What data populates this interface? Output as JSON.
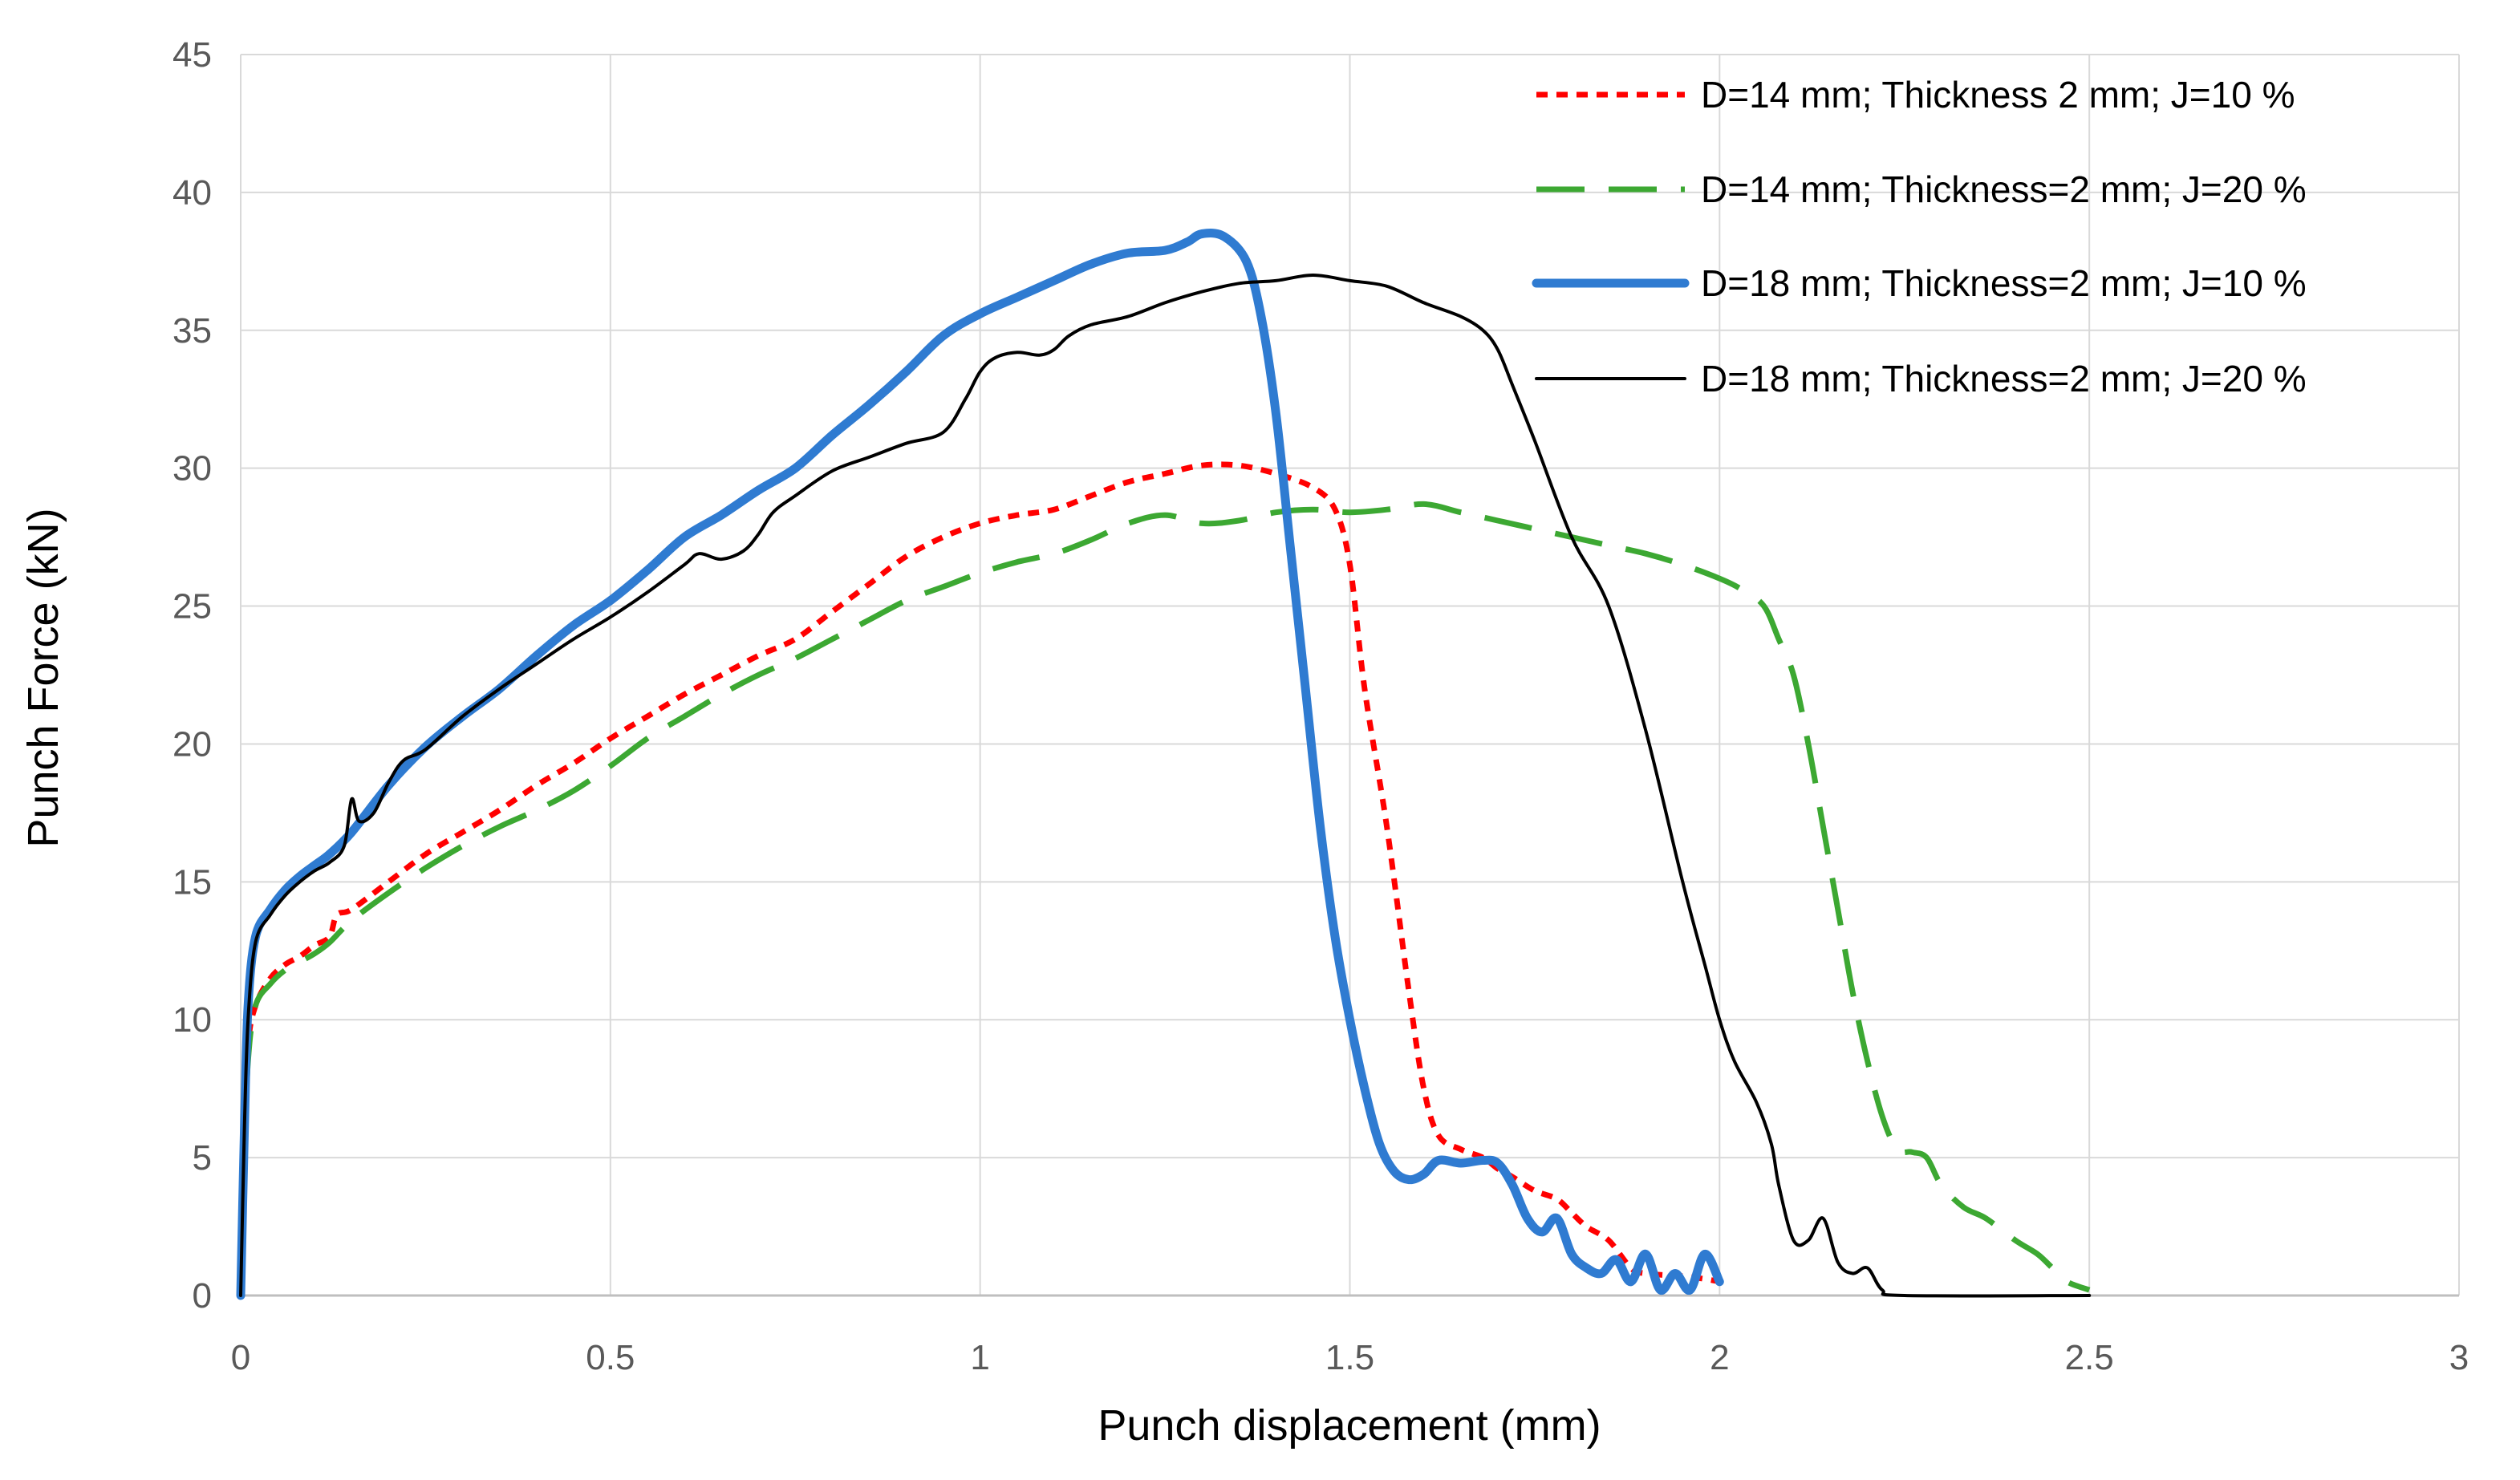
{
  "chart_data": {
    "type": "line",
    "title": "",
    "xlabel": "Punch displacement (mm)",
    "ylabel": "Punch Force (kN)",
    "xlim": [
      0,
      3
    ],
    "ylim": [
      0,
      45
    ],
    "xticks": [
      0,
      0.5,
      1,
      1.5,
      2,
      2.5,
      3
    ],
    "xtick_labels": [
      "0",
      "0.5",
      "1",
      "1.5",
      "2",
      "2.5",
      "3"
    ],
    "yticks": [
      0,
      5,
      10,
      15,
      20,
      25,
      30,
      35,
      40,
      45
    ],
    "ytick_labels": [
      "0",
      "5",
      "10",
      "15",
      "20",
      "25",
      "30",
      "35",
      "40",
      "45"
    ],
    "grid": true,
    "legend_position": "top-right",
    "series": [
      {
        "name": "D=14 mm; Thickness 2 mm; J=10 %",
        "color": "#ff0000",
        "style": "dotted",
        "x": [
          0,
          0.005,
          0.01,
          0.02,
          0.04,
          0.06,
          0.08,
          0.1,
          0.12,
          0.13,
          0.15,
          0.2,
          0.25,
          0.3,
          0.35,
          0.4,
          0.45,
          0.5,
          0.55,
          0.6,
          0.65,
          0.7,
          0.75,
          0.8,
          0.85,
          0.9,
          0.95,
          1.0,
          1.05,
          1.1,
          1.15,
          1.2,
          1.25,
          1.3,
          1.35,
          1.4,
          1.45,
          1.48,
          1.5,
          1.52,
          1.55,
          1.58,
          1.6,
          1.62,
          1.65,
          1.68,
          1.7,
          1.72,
          1.75,
          1.78,
          1.8,
          1.82,
          1.85,
          1.88,
          1.9,
          1.95,
          1.98,
          2.0
        ],
        "y": [
          0,
          5,
          9,
          10.5,
          11.5,
          12,
          12.3,
          12.7,
          13.0,
          13.8,
          14.0,
          15,
          16,
          16.8,
          17.6,
          18.5,
          19.3,
          20.2,
          21.0,
          21.8,
          22.5,
          23.2,
          23.8,
          24.8,
          25.8,
          26.8,
          27.5,
          28,
          28.3,
          28.5,
          29.0,
          29.5,
          29.8,
          30.1,
          30.1,
          29.8,
          29.3,
          28.5,
          26.5,
          22,
          17,
          11,
          7.5,
          5.8,
          5.3,
          5.0,
          4.6,
          4.3,
          3.8,
          3.5,
          3.0,
          2.5,
          2.0,
          1.0,
          0.8,
          0.7,
          0.6,
          0.5
        ]
      },
      {
        "name": "D=14 mm; Thickness=2 mm; J=20 %",
        "color": "#3ca832",
        "style": "dashed",
        "x": [
          0,
          0.005,
          0.01,
          0.02,
          0.04,
          0.06,
          0.08,
          0.1,
          0.12,
          0.15,
          0.2,
          0.25,
          0.3,
          0.35,
          0.4,
          0.45,
          0.5,
          0.55,
          0.6,
          0.65,
          0.7,
          0.75,
          0.8,
          0.85,
          0.9,
          0.95,
          1.0,
          1.05,
          1.1,
          1.15,
          1.2,
          1.25,
          1.3,
          1.35,
          1.4,
          1.45,
          1.5,
          1.55,
          1.6,
          1.65,
          1.7,
          1.75,
          1.8,
          1.85,
          1.9,
          1.95,
          2.0,
          2.03,
          2.06,
          2.08,
          2.1,
          2.12,
          2.14,
          2.16,
          2.18,
          2.2,
          2.22,
          2.24,
          2.26,
          2.28,
          2.3,
          2.33,
          2.36,
          2.4,
          2.43,
          2.45,
          2.47,
          2.5
        ],
        "y": [
          0,
          5,
          8.5,
          10.5,
          11.3,
          11.8,
          12.1,
          12.4,
          12.8,
          13.6,
          14.6,
          15.5,
          16.3,
          17.0,
          17.6,
          18.3,
          19.2,
          20.2,
          21.0,
          21.8,
          22.5,
          23.1,
          23.8,
          24.5,
          25.2,
          25.7,
          26.2,
          26.6,
          26.9,
          27.4,
          28.0,
          28.3,
          28.0,
          28.1,
          28.4,
          28.5,
          28.4,
          28.5,
          28.7,
          28.4,
          28.1,
          27.8,
          27.5,
          27.2,
          26.9,
          26.5,
          26.0,
          25.6,
          25.0,
          23.8,
          22.5,
          20.0,
          17.0,
          14.0,
          11.0,
          8.5,
          6.5,
          5.3,
          5.2,
          5.0,
          4.0,
          3.2,
          2.8,
          2.0,
          1.5,
          1.0,
          0.5,
          0.2
        ]
      },
      {
        "name": "D=18 mm; Thickness=2 mm; J=10 %",
        "color": "#2f7bd1",
        "style": "solid-thick",
        "x": [
          0,
          0.005,
          0.01,
          0.02,
          0.04,
          0.06,
          0.08,
          0.1,
          0.12,
          0.15,
          0.2,
          0.25,
          0.3,
          0.35,
          0.4,
          0.45,
          0.5,
          0.55,
          0.6,
          0.65,
          0.7,
          0.75,
          0.8,
          0.85,
          0.9,
          0.95,
          1.0,
          1.05,
          1.1,
          1.15,
          1.2,
          1.25,
          1.28,
          1.3,
          1.33,
          1.36,
          1.38,
          1.4,
          1.42,
          1.44,
          1.46,
          1.48,
          1.5,
          1.52,
          1.54,
          1.56,
          1.58,
          1.6,
          1.62,
          1.65,
          1.68,
          1.7,
          1.72,
          1.74,
          1.76,
          1.78,
          1.8,
          1.82,
          1.84,
          1.86,
          1.88,
          1.9,
          1.92,
          1.94,
          1.96,
          1.98,
          2.0
        ],
        "y": [
          0,
          6,
          10.5,
          13.0,
          14.0,
          14.7,
          15.2,
          15.6,
          16.0,
          16.8,
          18.5,
          19.9,
          21.0,
          22.0,
          23.2,
          24.3,
          25.2,
          26.3,
          27.5,
          28.3,
          29.2,
          30.0,
          31.2,
          32.3,
          33.5,
          34.8,
          35.6,
          36.2,
          36.8,
          37.4,
          37.8,
          37.9,
          38.2,
          38.5,
          38.4,
          37.5,
          35.5,
          32.0,
          27.0,
          22.0,
          17.0,
          13.0,
          10.0,
          7.5,
          5.5,
          4.5,
          4.2,
          4.4,
          4.9,
          4.8,
          4.9,
          4.8,
          4.0,
          2.8,
          2.3,
          2.8,
          1.5,
          1.0,
          0.8,
          1.3,
          0.5,
          1.5,
          0.2,
          0.8,
          0.2,
          1.5,
          0.5
        ]
      },
      {
        "name": "D=18 mm; Thickness=2 mm; J=20 %",
        "color": "#000000",
        "style": "solid-thin",
        "x": [
          0,
          0.005,
          0.01,
          0.02,
          0.04,
          0.06,
          0.08,
          0.1,
          0.12,
          0.14,
          0.15,
          0.16,
          0.18,
          0.2,
          0.22,
          0.25,
          0.3,
          0.35,
          0.4,
          0.45,
          0.5,
          0.55,
          0.6,
          0.62,
          0.65,
          0.68,
          0.7,
          0.72,
          0.75,
          0.8,
          0.85,
          0.9,
          0.95,
          0.98,
          1.0,
          1.02,
          1.05,
          1.08,
          1.1,
          1.12,
          1.15,
          1.2,
          1.25,
          1.3,
          1.35,
          1.4,
          1.45,
          1.5,
          1.55,
          1.6,
          1.65,
          1.68,
          1.7,
          1.72,
          1.75,
          1.8,
          1.85,
          1.9,
          1.95,
          1.98,
          2.0,
          2.02,
          2.05,
          2.07,
          2.08,
          2.1,
          2.12,
          2.14,
          2.16,
          2.18,
          2.2,
          2.22,
          2.25,
          2.5
        ],
        "y": [
          0,
          6,
          10,
          12.8,
          13.8,
          14.5,
          15.0,
          15.4,
          15.7,
          16.3,
          18.0,
          17.2,
          17.5,
          18.6,
          19.4,
          19.8,
          21.0,
          22.0,
          22.9,
          23.8,
          24.6,
          25.5,
          26.5,
          26.9,
          26.7,
          27.0,
          27.6,
          28.4,
          29.0,
          29.9,
          30.4,
          30.9,
          31.3,
          32.5,
          33.5,
          34.0,
          34.2,
          34.1,
          34.3,
          34.8,
          35.2,
          35.5,
          36.0,
          36.4,
          36.7,
          36.8,
          37.0,
          36.8,
          36.6,
          36.0,
          35.5,
          35.0,
          34.3,
          33.0,
          31.0,
          27.5,
          25.0,
          20.5,
          15.0,
          12.0,
          10.0,
          8.5,
          7.0,
          5.5,
          4.0,
          2.0,
          2.0,
          2.8,
          1.2,
          0.8,
          1.0,
          0.2,
          0.0,
          0.0
        ]
      }
    ]
  }
}
